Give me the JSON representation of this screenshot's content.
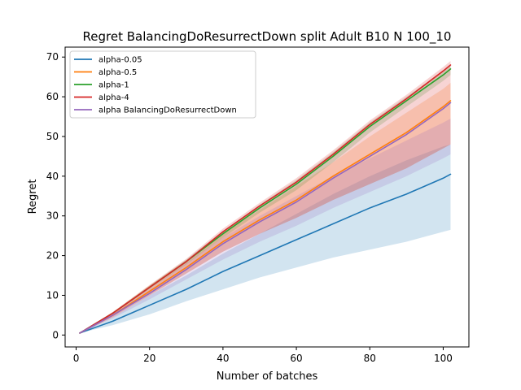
{
  "chart_data": {
    "type": "line",
    "title": "Regret BalancingDoResurrectDown split Adult B10 N 100_10",
    "xlabel": "Number of batches",
    "ylabel": "Regret",
    "xlim": [
      -3,
      107
    ],
    "ylim": [
      -3,
      72.5
    ],
    "xticks": [
      0,
      20,
      40,
      60,
      80,
      100
    ],
    "yticks": [
      0,
      10,
      20,
      30,
      40,
      50,
      60,
      70
    ],
    "grid": false,
    "legend_position": "top-left",
    "series": [
      {
        "name": "alpha-0.05",
        "color": "#1f77b4",
        "x": [
          1,
          10,
          20,
          30,
          40,
          50,
          60,
          70,
          80,
          90,
          100,
          102
        ],
        "values": [
          0.5,
          3.5,
          7.5,
          11.5,
          16.0,
          20.0,
          24.0,
          28.0,
          32.0,
          35.5,
          39.5,
          40.5
        ],
        "band_lower": [
          0.5,
          2.5,
          5.2,
          8.5,
          11.5,
          14.5,
          17.0,
          19.5,
          21.5,
          23.5,
          26.0,
          26.5
        ],
        "band_upper": [
          0.5,
          4.5,
          10.0,
          15.0,
          20.5,
          25.5,
          30.5,
          35.5,
          40.0,
          44.0,
          47.5,
          48.0
        ]
      },
      {
        "name": "alpha-0.5",
        "color": "#ff7f0e",
        "x": [
          1,
          10,
          20,
          30,
          40,
          50,
          60,
          70,
          80,
          90,
          100,
          102
        ],
        "values": [
          0.5,
          5.0,
          11.0,
          17.0,
          23.5,
          29.0,
          34.0,
          40.0,
          45.5,
          51.0,
          57.5,
          59.0
        ],
        "band_lower": [
          0.5,
          4.5,
          10.0,
          15.5,
          21.0,
          25.5,
          29.5,
          34.0,
          38.0,
          42.0,
          47.0,
          48.0
        ],
        "band_upper": [
          0.5,
          5.8,
          12.5,
          18.8,
          25.5,
          31.5,
          37.5,
          43.5,
          50.0,
          56.0,
          62.0,
          63.5
        ]
      },
      {
        "name": "alpha-1",
        "color": "#2ca02c",
        "x": [
          1,
          10,
          20,
          30,
          40,
          50,
          60,
          70,
          80,
          90,
          100,
          102
        ],
        "values": [
          0.5,
          5.5,
          12.0,
          18.5,
          25.5,
          32.0,
          38.0,
          45.0,
          52.5,
          59.0,
          65.5,
          67.0
        ],
        "band_lower": [
          0.5,
          5.3,
          11.6,
          17.8,
          24.5,
          30.8,
          36.5,
          43.5,
          51.0,
          57.5,
          64.0,
          65.5
        ],
        "band_upper": [
          0.5,
          5.7,
          12.4,
          19.0,
          26.2,
          32.8,
          39.0,
          46.0,
          53.5,
          60.0,
          66.5,
          68.0
        ]
      },
      {
        "name": "alpha-4",
        "color": "#d62728",
        "x": [
          1,
          10,
          20,
          30,
          40,
          50,
          60,
          70,
          80,
          90,
          100,
          102
        ],
        "values": [
          0.5,
          5.5,
          12.0,
          18.5,
          26.0,
          32.5,
          38.5,
          45.5,
          53.0,
          59.5,
          66.5,
          68.0
        ],
        "band_lower": [
          0.5,
          4.5,
          10.0,
          15.5,
          21.0,
          25.5,
          29.5,
          34.0,
          38.0,
          42.0,
          47.0,
          48.0
        ],
        "band_upper": [
          0.5,
          5.8,
          12.6,
          19.2,
          26.8,
          33.3,
          39.5,
          46.5,
          54.0,
          60.5,
          67.5,
          69.0
        ]
      },
      {
        "name": "alpha BalancingDoResurrectDown",
        "color": "#9467bd",
        "x": [
          1,
          10,
          20,
          30,
          40,
          50,
          60,
          70,
          80,
          90,
          100,
          102
        ],
        "values": [
          0.5,
          5.0,
          10.5,
          16.5,
          23.0,
          28.5,
          33.5,
          39.5,
          45.0,
          50.5,
          57.0,
          58.5
        ],
        "band_lower": [
          0.5,
          4.2,
          9.0,
          14.0,
          19.0,
          23.5,
          27.5,
          32.0,
          36.0,
          40.0,
          44.5,
          45.5
        ],
        "band_upper": [
          0.5,
          5.5,
          11.5,
          18.0,
          24.5,
          30.0,
          35.0,
          40.0,
          44.5,
          49.0,
          53.5,
          54.5
        ]
      }
    ]
  }
}
